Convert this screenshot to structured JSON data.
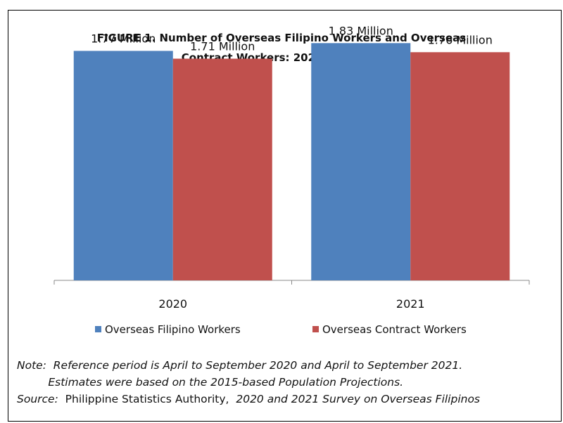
{
  "chart_data": {
    "type": "bar",
    "title_line1": "FIGURE 1.  Number of Overseas Filipino Workers and Overseas",
    "title_line2": "Contract Workers: 2020 and 2021",
    "categories": [
      "2020",
      "2021"
    ],
    "series": [
      {
        "name": "Overseas Filipino Workers",
        "values": [
          1.77,
          1.83
        ],
        "labels": [
          "1.77 Million",
          "1.83 Million"
        ],
        "color": "#4f81bd"
      },
      {
        "name": "Overseas Contract Workers",
        "values": [
          1.71,
          1.76
        ],
        "labels": [
          "1.71 Million",
          "1.76 Million"
        ],
        "color": "#c0504d"
      }
    ],
    "ylim": [
      0,
      2.0
    ],
    "grid": false,
    "legend_position": "bottom"
  },
  "notes": {
    "note_label": "Note:",
    "note_line1": "Reference period is April to September 2020 and April to September 2021.",
    "note_line2": "Estimates were based on the 2015-based Population Projections.",
    "source_label": "Source:",
    "source_agency": "Philippine Statistics Authority,",
    "source_survey": "2020 and 2021 Survey on Overseas Filipinos"
  }
}
